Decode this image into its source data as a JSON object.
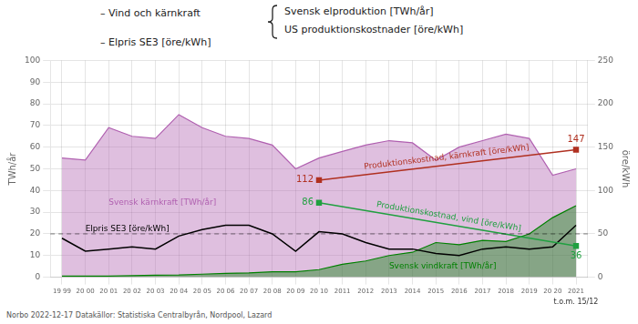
{
  "chart_data": {
    "type": "line",
    "title": [
      "– Vind och kärnkraft",
      "– Elpris SE3 [öre/kWh]"
    ],
    "title_brace": [
      "Svensk elproduktion [TWh/år]",
      "US produktionskostnader [öre/kWh]"
    ],
    "x": [
      1999,
      2000,
      2001,
      2002,
      2003,
      2004,
      2005,
      2006,
      2007,
      2008,
      2009,
      2010,
      2011,
      2012,
      2013,
      2014,
      2015,
      2016,
      2017,
      2018,
      2019,
      2020,
      2021
    ],
    "xlim": [
      1998.5,
      2021.5
    ],
    "xticks": [
      {
        "value": 1999,
        "label": "19 99"
      },
      {
        "value": 2000,
        "label": "20 00"
      },
      {
        "value": 2001,
        "label": "20 01"
      },
      {
        "value": 2002,
        "label": "20 02"
      },
      {
        "value": 2003,
        "label": "20 03"
      },
      {
        "value": 2004,
        "label": "20 04"
      },
      {
        "value": 2005,
        "label": "20 05"
      },
      {
        "value": 2006,
        "label": "20 06"
      },
      {
        "value": 2007,
        "label": "20 07"
      },
      {
        "value": 2008,
        "label": "20 08"
      },
      {
        "value": 2009,
        "label": "20 09"
      },
      {
        "value": 2010,
        "label": "20 10"
      },
      2011,
      2012,
      2013,
      2014,
      2015,
      2016,
      2017,
      2018,
      2019,
      {
        "value": 2020,
        "label": "20 20"
      },
      2021
    ],
    "ylim": [
      0,
      100
    ],
    "yticks": [
      0,
      10,
      20,
      30,
      40,
      50,
      60,
      70,
      80,
      90,
      100
    ],
    "y2lim": [
      0,
      250
    ],
    "y2ticks": [
      0,
      50,
      100,
      150,
      200,
      250
    ],
    "ylabel": "TWh/år",
    "y2label": "öre/kWh",
    "grid": true,
    "hlines": [
      20
    ],
    "note": "t.o.m. 15/12",
    "source": "Norbo 2022-12-17     Datakällor: Statistiska Centralbyrån, Nordpool, Lazard",
    "series": [
      {
        "name": "Svensk kärnkraft [TWh/år]",
        "type": "area",
        "color": "#b060b0",
        "values": [
          55,
          54,
          69,
          65,
          64,
          75,
          69,
          65,
          64,
          61,
          50,
          55,
          58,
          61,
          63,
          62,
          54,
          60,
          63,
          66,
          64,
          47,
          50
        ]
      },
      {
        "name": "Svensk vindkraft [TWh/år]",
        "type": "area",
        "color": "#008000",
        "values": [
          0.5,
          0.5,
          0.5,
          0.7,
          0.9,
          1.0,
          1.4,
          1.8,
          2.0,
          2.5,
          2.5,
          3.5,
          6.0,
          7.5,
          10.0,
          11.5,
          16.0,
          15.0,
          17.0,
          16.5,
          20.0,
          27.5,
          33.0
        ]
      },
      {
        "name": "Elpris SE3 [öre/kWh]",
        "type": "line",
        "color": "#000000",
        "values": [
          18,
          12,
          13,
          14,
          13,
          19,
          22,
          24,
          24,
          20,
          12,
          21,
          20,
          16,
          13,
          13,
          11,
          10,
          13,
          14,
          13,
          14,
          24
        ]
      },
      {
        "name": "Produktionskostnad, kärnkraft [öre/kWh]",
        "type": "line",
        "color": "#b03020",
        "marker": "square",
        "axis": "y2",
        "data_labels": true,
        "x": [
          2010,
          2021
        ],
        "values": [
          112,
          147
        ]
      },
      {
        "name": "Produktionskostnad, vind [öre/kWh]",
        "type": "line",
        "color": "#20a040",
        "marker": "square",
        "axis": "y2",
        "data_labels": true,
        "x": [
          2010,
          2021
        ],
        "values": [
          86,
          36
        ]
      }
    ]
  }
}
